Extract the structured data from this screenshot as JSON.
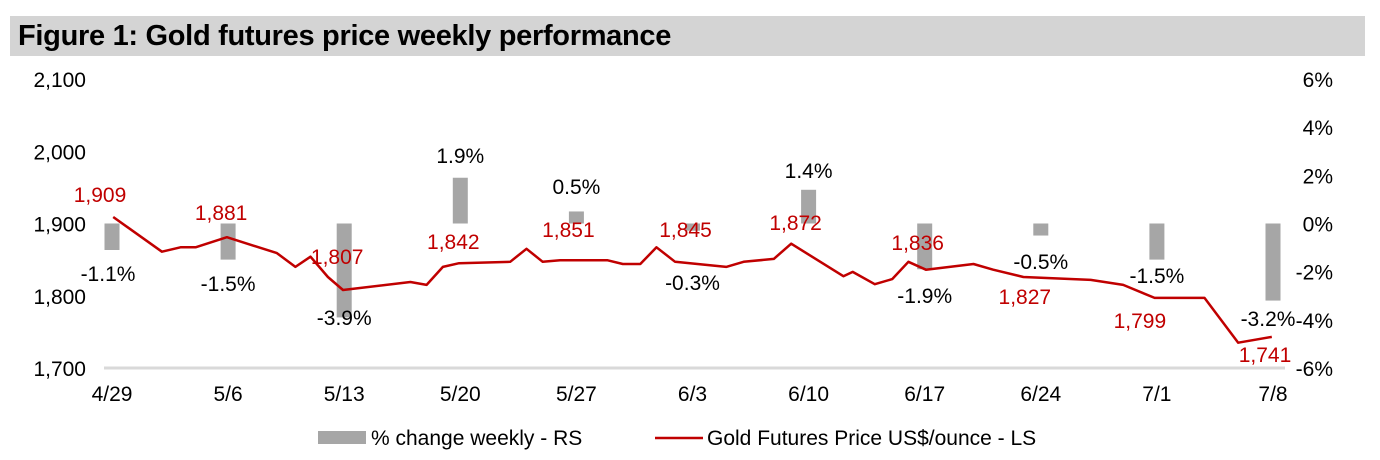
{
  "title": "Figure 1: Gold futures price weekly performance",
  "chart_data": {
    "type": "bar+line",
    "title": "Figure 1: Gold futures price weekly performance",
    "categories": [
      "4/29",
      "5/6",
      "5/13",
      "5/20",
      "5/27",
      "6/3",
      "6/10",
      "6/17",
      "6/24",
      "7/1",
      "7/8"
    ],
    "left_axis": {
      "label": "Gold Futures Price US$/ounce",
      "ylim": [
        1700,
        2100
      ],
      "ticks": [
        "1,700",
        "1,800",
        "1,900",
        "2,000",
        "2,100"
      ],
      "tick_values": [
        1700,
        1800,
        1900,
        2000,
        2100
      ]
    },
    "right_axis": {
      "label": "% change weekly",
      "ylim": [
        -6,
        6
      ],
      "ticks": [
        "-6%",
        "-4%",
        "-2%",
        "0%",
        "2%",
        "4%",
        "6%"
      ],
      "tick_values": [
        -6,
        -4,
        -2,
        0,
        2,
        4,
        6
      ]
    },
    "series": [
      {
        "name": "% change weekly - RS",
        "type": "bar",
        "axis": "right",
        "color": "#a6a6a6",
        "values": [
          -1.1,
          -1.5,
          -3.9,
          1.9,
          0.5,
          -0.3,
          1.4,
          -1.9,
          -0.5,
          -1.5,
          -3.2
        ],
        "labels": [
          "-1.1%",
          "-1.5%",
          "-3.9%",
          "1.9%",
          "0.5%",
          "-0.3%",
          "1.4%",
          "-1.9%",
          "-0.5%",
          "-1.5%",
          "-3.2%"
        ]
      },
      {
        "name": "Gold Futures Price US$/ounce - LS",
        "type": "line",
        "axis": "left",
        "color": "#c00000",
        "weekly_labels": [
          "1,909",
          "1,881",
          "1,807",
          "1,842",
          "1,851",
          "1,845",
          "1,872",
          "1,836",
          "1,827",
          "1,799",
          "1,741"
        ],
        "daily_points": [
          {
            "week": 0.01,
            "price": 1909
          },
          {
            "week": 0.43,
            "price": 1861
          },
          {
            "week": 0.59,
            "price": 1867
          },
          {
            "week": 0.72,
            "price": 1867
          },
          {
            "week": 0.99,
            "price": 1881
          },
          {
            "week": 1.42,
            "price": 1859
          },
          {
            "week": 1.58,
            "price": 1840
          },
          {
            "week": 1.71,
            "price": 1854
          },
          {
            "week": 1.86,
            "price": 1826
          },
          {
            "week": 1.99,
            "price": 1808
          },
          {
            "week": 2.57,
            "price": 1819
          },
          {
            "week": 2.71,
            "price": 1815
          },
          {
            "week": 2.85,
            "price": 1840
          },
          {
            "week": 2.99,
            "price": 1845
          },
          {
            "week": 3.43,
            "price": 1847
          },
          {
            "week": 3.57,
            "price": 1865
          },
          {
            "week": 3.71,
            "price": 1847
          },
          {
            "week": 3.86,
            "price": 1849
          },
          {
            "week": 4.27,
            "price": 1849
          },
          {
            "week": 4.4,
            "price": 1844
          },
          {
            "week": 4.55,
            "price": 1844
          },
          {
            "week": 4.69,
            "price": 1867
          },
          {
            "week": 4.85,
            "price": 1847
          },
          {
            "week": 5.29,
            "price": 1840
          },
          {
            "week": 5.44,
            "price": 1847
          },
          {
            "week": 5.7,
            "price": 1851
          },
          {
            "week": 5.85,
            "price": 1872
          },
          {
            "week": 6.3,
            "price": 1827
          },
          {
            "week": 6.38,
            "price": 1833
          },
          {
            "week": 6.57,
            "price": 1816
          },
          {
            "week": 6.72,
            "price": 1823
          },
          {
            "week": 6.86,
            "price": 1847
          },
          {
            "week": 7.01,
            "price": 1836
          },
          {
            "week": 7.42,
            "price": 1844
          },
          {
            "week": 7.59,
            "price": 1836
          },
          {
            "week": 7.85,
            "price": 1826
          },
          {
            "week": 8.43,
            "price": 1822
          },
          {
            "week": 8.71,
            "price": 1815
          },
          {
            "week": 8.98,
            "price": 1797
          },
          {
            "week": 9.41,
            "price": 1797
          },
          {
            "week": 9.7,
            "price": 1735
          },
          {
            "week": 9.99,
            "price": 1743
          }
        ]
      }
    ],
    "legend": {
      "position": "bottom",
      "entries": [
        "% change weekly - RS",
        "Gold Futures Price US$/ounce - LS"
      ]
    },
    "grid": false
  }
}
